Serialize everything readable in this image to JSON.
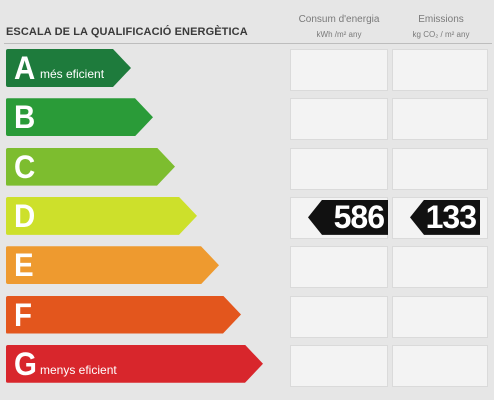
{
  "title": "ESCALA DE LA QUALIFICACIÓ ENERGÈTICA",
  "columns": {
    "consum": {
      "heading": "Consum d'energia",
      "unit": "kWh /m² any"
    },
    "emissions": {
      "heading": "Emissions",
      "unit": "kg CO₂ / m² any"
    }
  },
  "classes": [
    {
      "letter": "A",
      "caption": "més eficient",
      "color": "#1e7b3c"
    },
    {
      "letter": "B",
      "caption": "",
      "color": "#2a9b38"
    },
    {
      "letter": "C",
      "caption": "",
      "color": "#7dbd2f"
    },
    {
      "letter": "D",
      "caption": "",
      "color": "#cde02b"
    },
    {
      "letter": "E",
      "caption": "",
      "color": "#ee9a2f"
    },
    {
      "letter": "F",
      "caption": "",
      "color": "#e3561d"
    },
    {
      "letter": "G",
      "caption": "menys eficient",
      "color": "#d8262c"
    }
  ],
  "rating": {
    "class": "D",
    "consum_value": "586",
    "emissions_value": "133"
  }
}
